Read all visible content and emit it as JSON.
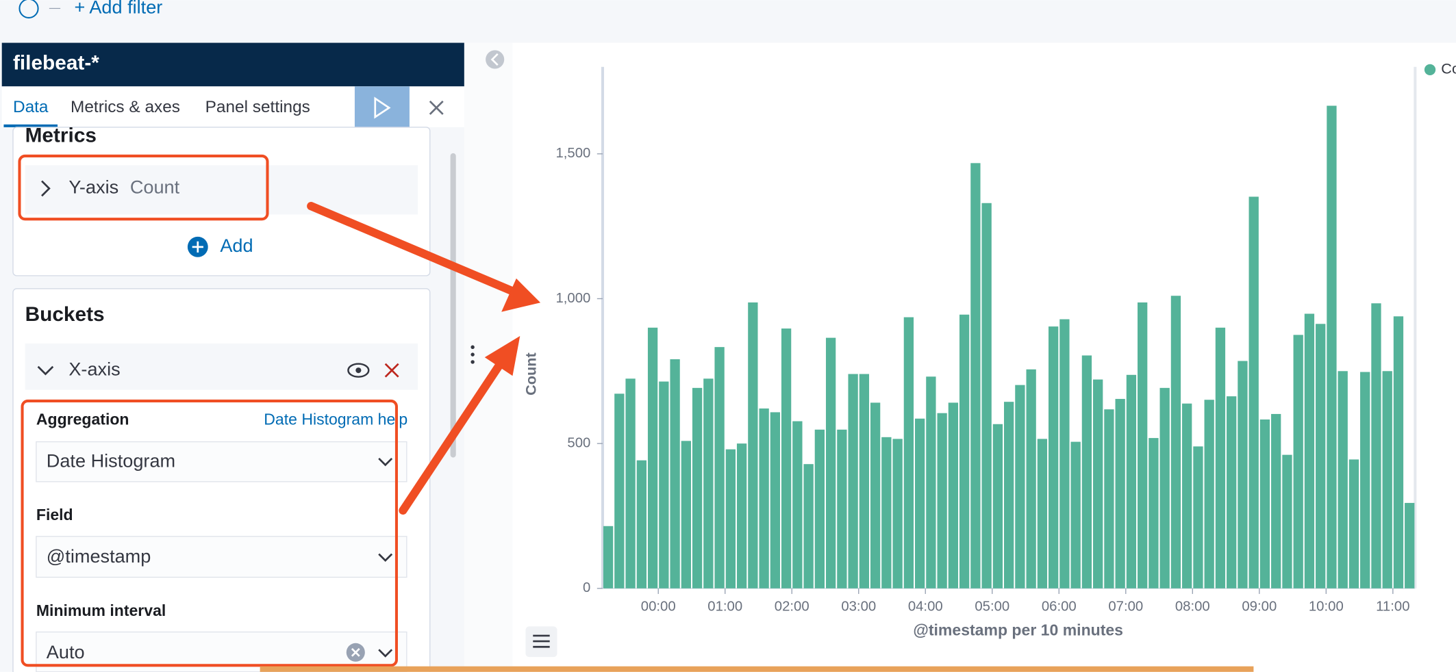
{
  "filter_bar": {
    "add_filter": "+ Add filter"
  },
  "panel": {
    "title": "filebeat-*",
    "tabs": [
      "Data",
      "Metrics & axes",
      "Panel settings"
    ],
    "metrics": {
      "heading": "Metrics",
      "item_axis": "Y-axis",
      "item_agg": "Count",
      "add": "Add"
    },
    "buckets": {
      "heading": "Buckets",
      "item_axis": "X-axis",
      "fields": [
        {
          "label": "Aggregation",
          "value": "Date Histogram",
          "help": "Date Histogram help"
        },
        {
          "label": "Field",
          "value": "@timestamp"
        },
        {
          "label": "Minimum interval",
          "value": "Auto"
        }
      ]
    }
  },
  "chart_data": {
    "type": "bar",
    "ylabel": "Count",
    "xlabel": "@timestamp per 10 minutes",
    "x": [
      -50,
      -40,
      -30,
      -20,
      -10,
      0,
      10,
      20,
      30,
      40,
      50,
      60,
      70,
      80,
      90,
      100,
      110,
      120,
      130,
      140,
      150,
      160,
      170,
      180,
      190,
      200,
      210,
      220,
      230,
      240,
      250,
      260,
      270,
      280,
      290,
      300,
      310,
      320,
      330,
      340,
      350,
      360,
      370,
      380,
      390,
      400,
      410,
      420,
      430,
      440,
      450,
      460,
      470,
      480,
      490,
      500,
      510,
      520,
      530,
      540,
      550,
      560,
      570,
      580,
      590,
      600,
      610,
      620,
      630,
      640,
      650,
      660,
      670
    ],
    "series": [
      {
        "name": "Count",
        "color": "#54b399",
        "values": [
          215,
          672,
          724,
          442,
          900,
          714,
          791,
          509,
          692,
          724,
          833,
          480,
          500,
          987,
          621,
          608,
          897,
          577,
          429,
          548,
          865,
          548,
          740,
          740,
          641,
          522,
          516,
          936,
          586,
          731,
          605,
          641,
          945,
          1468,
          1330,
          567,
          644,
          702,
          756,
          516,
          904,
          929,
          506,
          804,
          721,
          618,
          654,
          737,
          987,
          519,
          692,
          1010,
          638,
          490,
          651,
          900,
          663,
          785,
          1352,
          583,
          602,
          461,
          875,
          948,
          913,
          1666,
          750,
          445,
          747,
          984,
          750,
          939,
          295
        ]
      }
    ],
    "xlim": [
      -50,
      680
    ],
    "xticks": [
      {
        "value": 0,
        "label": "00:00"
      },
      {
        "value": 60,
        "label": "01:00"
      },
      {
        "value": 120,
        "label": "02:00"
      },
      {
        "value": 180,
        "label": "03:00"
      },
      {
        "value": 240,
        "label": "04:00"
      },
      {
        "value": 300,
        "label": "05:00"
      },
      {
        "value": 360,
        "label": "06:00"
      },
      {
        "value": 420,
        "label": "07:00"
      },
      {
        "value": 480,
        "label": "08:00"
      },
      {
        "value": 540,
        "label": "09:00"
      },
      {
        "value": 600,
        "label": "10:00"
      },
      {
        "value": 660,
        "label": "11:00"
      }
    ],
    "ylim": [
      0,
      1800
    ],
    "yticks": [
      0,
      500,
      {
        "value": 1000,
        "label": "1,000"
      },
      {
        "value": 1500,
        "label": "1,500"
      }
    ]
  }
}
